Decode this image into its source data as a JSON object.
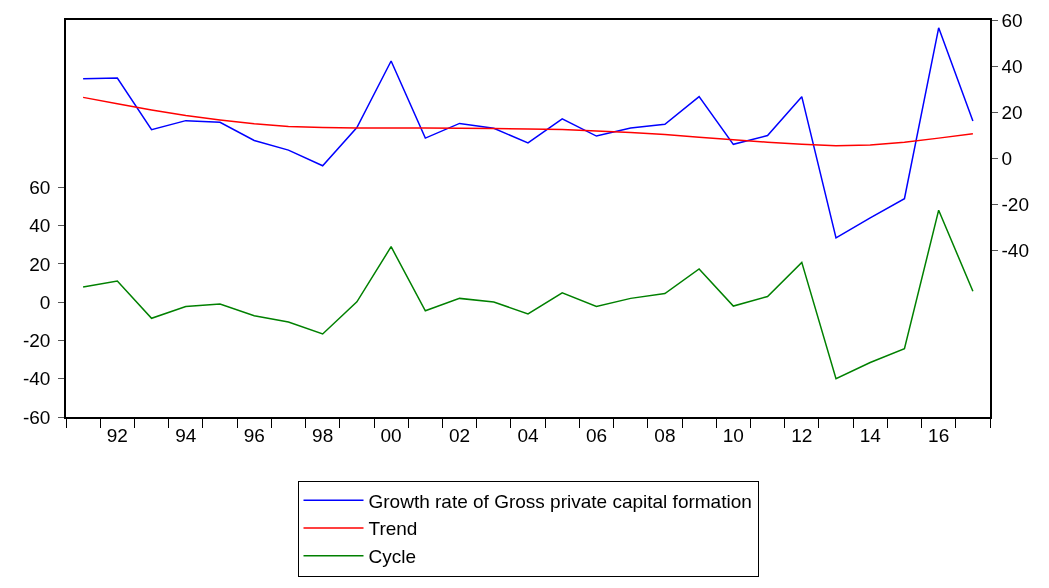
{
  "chart_data": {
    "type": "line",
    "x": [
      1991,
      1992,
      1993,
      1994,
      1995,
      1996,
      1997,
      1998,
      1999,
      2000,
      2001,
      2002,
      2003,
      2004,
      2005,
      2006,
      2007,
      2008,
      2009,
      2010,
      2011,
      2012,
      2013,
      2014,
      2015,
      2016,
      2017
    ],
    "series": [
      {
        "name": "Growth rate of Gross private capital formation",
        "color": "#0000ff",
        "axis": "y2",
        "values": [
          34.5,
          34.8,
          12.4,
          16.3,
          15.6,
          7.7,
          3.5,
          -3.3,
          13.3,
          42.2,
          8.7,
          15.1,
          13.0,
          6.6,
          17.1,
          9.6,
          13.1,
          14.7,
          26.7,
          6.0,
          9.8,
          26.7,
          -34.6,
          -25.9,
          -17.6,
          56.6,
          16.1
        ]
      },
      {
        "name": "Trend",
        "color": "#ff0000",
        "axis": "y2",
        "values": [
          26.4,
          23.6,
          20.9,
          18.5,
          16.6,
          14.9,
          13.8,
          13.3,
          13.1,
          13.1,
          13.1,
          13.0,
          12.9,
          12.7,
          12.4,
          11.8,
          11.1,
          10.3,
          9.1,
          8.0,
          6.9,
          6.0,
          5.4,
          5.7,
          6.9,
          8.7,
          10.6
        ]
      },
      {
        "name": "Cycle",
        "color": "#008000",
        "axis": "y",
        "values": [
          7.9,
          11.1,
          -8.4,
          -2.3,
          -1.0,
          -7.1,
          -10.4,
          -16.6,
          0.2,
          29.0,
          -4.5,
          2.0,
          0.1,
          -6.1,
          4.9,
          -2.2,
          2.0,
          4.5,
          17.4,
          -2.0,
          3.0,
          20.8,
          -40.0,
          -31.5,
          -24.3,
          48.1,
          5.7
        ]
      }
    ],
    "xlim": [
      1990.5,
      2017.5
    ],
    "xticks": [
      {
        "value": 1990.5,
        "label": null
      },
      {
        "value": 1991.5,
        "label": null
      },
      {
        "value": 1992,
        "label": "92"
      },
      {
        "value": 1992.5,
        "label": null
      },
      {
        "value": 1993.5,
        "label": null
      },
      {
        "value": 1994,
        "label": "94"
      },
      {
        "value": 1994.5,
        "label": null
      },
      {
        "value": 1995.5,
        "label": null
      },
      {
        "value": 1996,
        "label": "96"
      },
      {
        "value": 1996.5,
        "label": null
      },
      {
        "value": 1997.5,
        "label": null
      },
      {
        "value": 1998,
        "label": "98"
      },
      {
        "value": 1998.5,
        "label": null
      },
      {
        "value": 1999.5,
        "label": null
      },
      {
        "value": 2000,
        "label": "00"
      },
      {
        "value": 2000.5,
        "label": null
      },
      {
        "value": 2001.5,
        "label": null
      },
      {
        "value": 2002,
        "label": "02"
      },
      {
        "value": 2002.5,
        "label": null
      },
      {
        "value": 2003.5,
        "label": null
      },
      {
        "value": 2004,
        "label": "04"
      },
      {
        "value": 2004.5,
        "label": null
      },
      {
        "value": 2005.5,
        "label": null
      },
      {
        "value": 2006,
        "label": "06"
      },
      {
        "value": 2006.5,
        "label": null
      },
      {
        "value": 2007.5,
        "label": null
      },
      {
        "value": 2008,
        "label": "08"
      },
      {
        "value": 2008.5,
        "label": null
      },
      {
        "value": 2009.5,
        "label": null
      },
      {
        "value": 2010,
        "label": "10"
      },
      {
        "value": 2010.5,
        "label": null
      },
      {
        "value": 2011.5,
        "label": null
      },
      {
        "value": 2012,
        "label": "12"
      },
      {
        "value": 2012.5,
        "label": null
      },
      {
        "value": 2013.5,
        "label": null
      },
      {
        "value": 2014,
        "label": "14"
      },
      {
        "value": 2014.5,
        "label": null
      },
      {
        "value": 2015.5,
        "label": null
      },
      {
        "value": 2016,
        "label": "16"
      },
      {
        "value": 2016.5,
        "label": null
      },
      {
        "value": 2017.5,
        "label": null
      }
    ],
    "ylim": [
      -60,
      147.5
    ],
    "yticks": [
      -60,
      -40,
      -20,
      0,
      20,
      40,
      60
    ],
    "y2lim": [
      -112.4,
      60
    ],
    "y2ticks": [
      -40,
      -20,
      0,
      20,
      40,
      60
    ],
    "grid": false,
    "legend": "bottom",
    "line_style": "solid"
  }
}
